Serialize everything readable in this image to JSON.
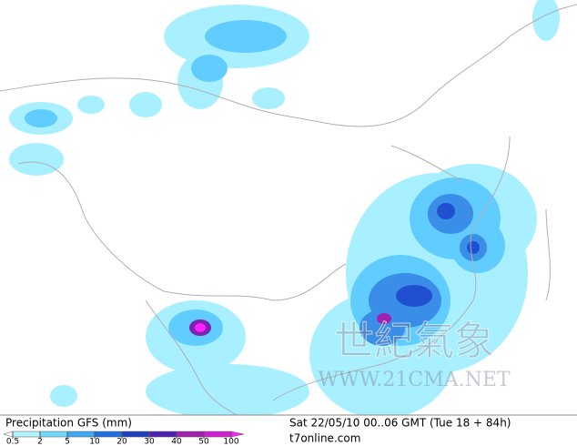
{
  "map": {
    "title": "Precipitation GFS (mm)",
    "timestamp": "Sat 22/05/10 00..06 GMT (Tue 18 + 84h)",
    "source": "t7online.com",
    "watermark": {
      "title": "世紀氣象",
      "url": "WWW.21CMA.NET"
    },
    "legend": {
      "levels": [
        0.5,
        2,
        5,
        10,
        20,
        30,
        40,
        50,
        100
      ],
      "colors": [
        "#ffffff",
        "#b0f4ff",
        "#70d8ff",
        "#40a8f0",
        "#2070e0",
        "#2040c0",
        "#5020b0",
        "#a020b0",
        "#d020d0",
        "#ff20ff"
      ]
    }
  }
}
